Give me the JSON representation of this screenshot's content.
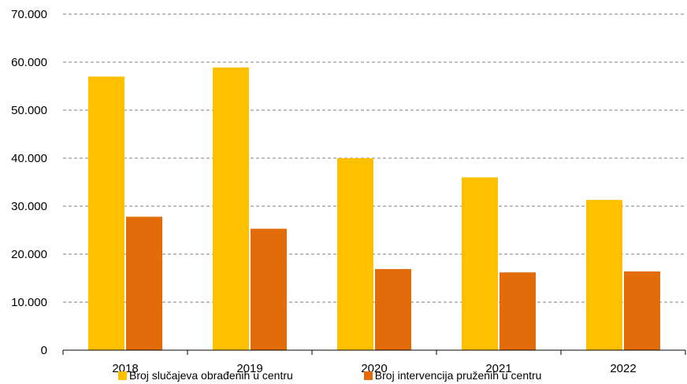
{
  "chart_data": {
    "type": "bar",
    "categories": [
      "2018",
      "2019",
      "2020",
      "2021",
      "2022"
    ],
    "series": [
      {
        "name": "Broj slučajeva obrađenih u centru",
        "values": [
          57000,
          58900,
          40000,
          36000,
          31300
        ],
        "color": "#FFC000"
      },
      {
        "name": "Broj intervencija pruženih u centru",
        "values": [
          27800,
          25300,
          16900,
          16200,
          16400
        ],
        "color": "#E36C0A"
      }
    ],
    "ylim": [
      0,
      70000
    ],
    "yticks": [
      "0",
      "10.000",
      "20.000",
      "30.000",
      "40.000",
      "50.000",
      "60.000",
      "70.000"
    ],
    "ytick_values": [
      0,
      10000,
      20000,
      30000,
      40000,
      50000,
      60000,
      70000
    ],
    "grid": true,
    "legend_position": "bottom",
    "title": "",
    "xlabel": "",
    "ylabel": ""
  }
}
